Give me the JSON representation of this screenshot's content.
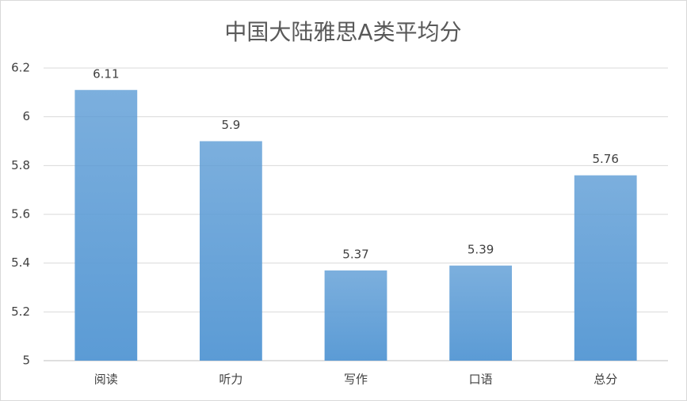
{
  "chart_data": {
    "type": "bar",
    "title": "中国大陆雅思A类平均分",
    "categories": [
      "阅读",
      "听力",
      "写作",
      "口语",
      "总分"
    ],
    "values": [
      6.11,
      5.9,
      5.37,
      5.39,
      5.76
    ],
    "color": "#5b9bd5",
    "ylim": [
      5,
      6.2
    ],
    "yticks": [
      5,
      5.2,
      5.4,
      5.6,
      5.8,
      6,
      6.2
    ],
    "grid": true
  }
}
